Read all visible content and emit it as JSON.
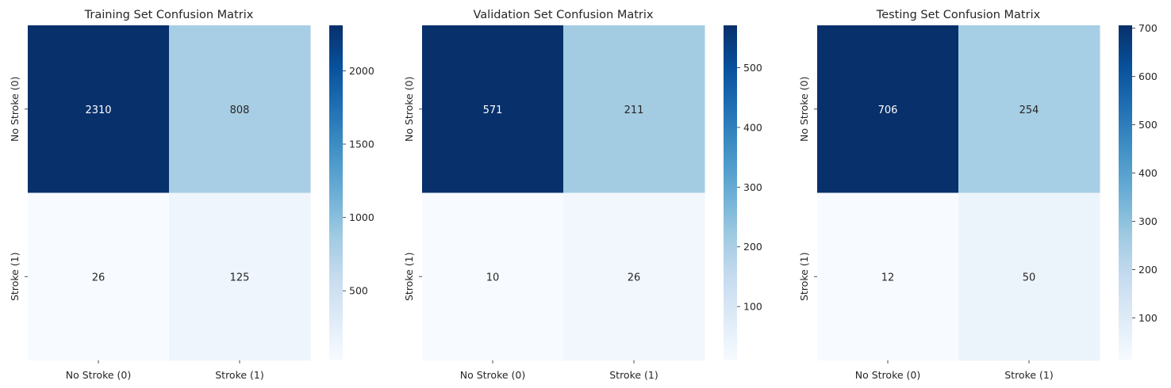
{
  "chart_data": [
    {
      "type": "heatmap",
      "title": "Training Set Confusion Matrix",
      "x_categories": [
        "No Stroke (0)",
        "Stroke (1)"
      ],
      "y_categories": [
        "No Stroke (0)",
        "Stroke (1)"
      ],
      "values": [
        [
          2310,
          808
        ],
        [
          26,
          125
        ]
      ],
      "colorbar": {
        "range": [
          26,
          2310
        ],
        "ticks": [
          500,
          1000,
          1500,
          2000
        ]
      },
      "colormap": "Blues"
    },
    {
      "type": "heatmap",
      "title": "Validation Set Confusion Matrix",
      "x_categories": [
        "No Stroke (0)",
        "Stroke (1)"
      ],
      "y_categories": [
        "No Stroke (0)",
        "Stroke (1)"
      ],
      "values": [
        [
          571,
          211
        ],
        [
          10,
          26
        ]
      ],
      "colorbar": {
        "range": [
          10,
          571
        ],
        "ticks": [
          100,
          200,
          300,
          400,
          500
        ]
      },
      "colormap": "Blues"
    },
    {
      "type": "heatmap",
      "title": "Testing Set Confusion Matrix",
      "x_categories": [
        "No Stroke (0)",
        "Stroke (1)"
      ],
      "y_categories": [
        "No Stroke (0)",
        "Stroke (1)"
      ],
      "values": [
        [
          706,
          254
        ],
        [
          12,
          50
        ]
      ],
      "colorbar": {
        "range": [
          12,
          706
        ],
        "ticks": [
          100,
          200,
          300,
          400,
          500,
          600,
          700
        ]
      },
      "colormap": "Blues"
    }
  ]
}
